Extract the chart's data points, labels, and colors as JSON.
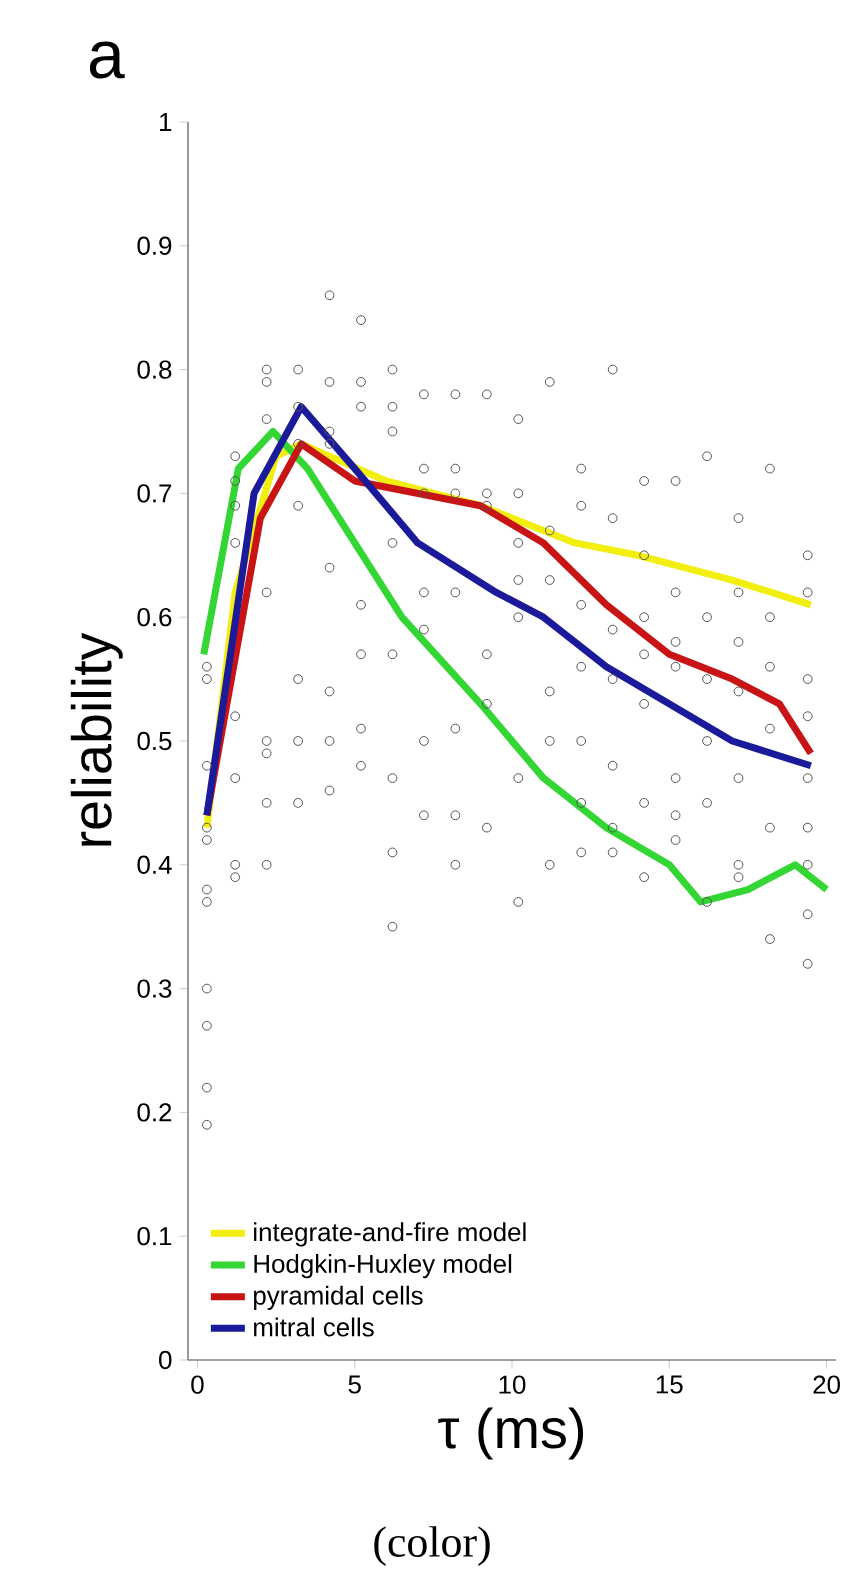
{
  "chart_data": {
    "type": "line",
    "title": "a",
    "xlabel": "τ (ms)",
    "ylabel": "reliability",
    "annotations": [
      "(color)"
    ],
    "xlim": [
      -0.3,
      20.3
    ],
    "ylim": [
      0,
      1
    ],
    "xticks": [
      0,
      5,
      10,
      15,
      20
    ],
    "yticks": [
      0,
      0.1,
      0.2,
      0.3,
      0.4,
      0.5,
      0.6,
      0.7,
      0.8,
      0.9,
      1
    ],
    "legend": "bottom left",
    "series": [
      {
        "type": "scatter",
        "marker": "circle",
        "color": "#555555",
        "x": [
          0.3,
          0.3,
          0.3,
          0.3,
          0.3,
          0.3,
          0.3,
          0.3,
          0.3,
          0.3,
          0.3,
          1.2,
          1.2,
          1.2,
          1.2,
          1.2,
          1.2,
          1.2,
          1.2,
          2.2,
          2.2,
          2.2,
          2.2,
          2.2,
          2.2,
          2.2,
          2.2,
          3.2,
          3.2,
          3.2,
          3.2,
          3.2,
          3.2,
          3.2,
          4.2,
          4.2,
          4.2,
          4.2,
          4.2,
          4.2,
          4.2,
          4.2,
          5.2,
          5.2,
          5.2,
          5.2,
          5.2,
          5.2,
          5.2,
          6.2,
          6.2,
          6.2,
          6.2,
          6.2,
          6.2,
          6.2,
          6.2,
          7.2,
          7.2,
          7.2,
          7.2,
          7.2,
          7.2,
          7.2,
          8.2,
          8.2,
          8.2,
          8.2,
          8.2,
          8.2,
          8.2,
          9.2,
          9.2,
          9.2,
          9.2,
          9.2,
          9.2,
          10.2,
          10.2,
          10.2,
          10.2,
          10.2,
          10.2,
          10.2,
          11.2,
          11.2,
          11.2,
          11.2,
          11.2,
          11.2,
          12.2,
          12.2,
          12.2,
          12.2,
          12.2,
          12.2,
          12.2,
          13.2,
          13.2,
          13.2,
          13.2,
          13.2,
          13.2,
          13.2,
          14.2,
          14.2,
          14.2,
          14.2,
          14.2,
          14.2,
          14.2,
          15.2,
          15.2,
          15.2,
          15.2,
          15.2,
          15.2,
          15.2,
          16.2,
          16.2,
          16.2,
          16.2,
          16.2,
          16.2,
          17.2,
          17.2,
          17.2,
          17.2,
          17.2,
          17.2,
          17.2,
          18.2,
          18.2,
          18.2,
          18.2,
          18.2,
          18.2,
          19.4,
          19.4,
          19.4,
          19.4,
          19.4,
          19.4,
          19.4,
          19.4,
          19.4
        ],
        "values": [
          0.43,
          0.42,
          0.38,
          0.37,
          0.3,
          0.27,
          0.22,
          0.19,
          0.56,
          0.55,
          0.48,
          0.71,
          0.69,
          0.66,
          0.52,
          0.47,
          0.4,
          0.39,
          0.73,
          0.8,
          0.79,
          0.76,
          0.62,
          0.5,
          0.49,
          0.45,
          0.4,
          0.8,
          0.77,
          0.74,
          0.69,
          0.55,
          0.5,
          0.45,
          0.86,
          0.79,
          0.75,
          0.74,
          0.64,
          0.54,
          0.5,
          0.46,
          0.84,
          0.79,
          0.77,
          0.61,
          0.57,
          0.51,
          0.48,
          0.8,
          0.77,
          0.75,
          0.66,
          0.57,
          0.47,
          0.41,
          0.35,
          0.78,
          0.72,
          0.7,
          0.62,
          0.59,
          0.5,
          0.44,
          0.78,
          0.72,
          0.7,
          0.62,
          0.51,
          0.44,
          0.4,
          0.78,
          0.7,
          0.69,
          0.57,
          0.53,
          0.43,
          0.76,
          0.7,
          0.66,
          0.63,
          0.6,
          0.47,
          0.37,
          0.79,
          0.67,
          0.63,
          0.54,
          0.5,
          0.4,
          0.72,
          0.69,
          0.61,
          0.56,
          0.5,
          0.45,
          0.41,
          0.8,
          0.68,
          0.59,
          0.55,
          0.48,
          0.43,
          0.41,
          0.71,
          0.65,
          0.6,
          0.57,
          0.53,
          0.45,
          0.39,
          0.71,
          0.62,
          0.58,
          0.56,
          0.47,
          0.44,
          0.42,
          0.73,
          0.6,
          0.55,
          0.5,
          0.45,
          0.37,
          0.68,
          0.62,
          0.58,
          0.54,
          0.47,
          0.4,
          0.39,
          0.72,
          0.6,
          0.56,
          0.51,
          0.43,
          0.34,
          0.65,
          0.62,
          0.55,
          0.52,
          0.47,
          0.43,
          0.4,
          0.36,
          0.32
        ]
      },
      {
        "name": "integrate-and-fire model",
        "color": "#f2ee10",
        "x": [
          0.3,
          1.2,
          2.5,
          3.3,
          6,
          9,
          12,
          14,
          17,
          19.5
        ],
        "values": [
          0.43,
          0.62,
          0.73,
          0.74,
          0.71,
          0.69,
          0.66,
          0.65,
          0.63,
          0.61
        ]
      },
      {
        "name": "Hodgkin-Huxley model",
        "color": "#33d633",
        "x": [
          0.2,
          1.3,
          2.4,
          3.5,
          5,
          6.5,
          9,
          11,
          13,
          15,
          16,
          17.5,
          19,
          20
        ],
        "values": [
          0.57,
          0.72,
          0.75,
          0.72,
          0.66,
          0.6,
          0.53,
          0.47,
          0.43,
          0.4,
          0.37,
          0.38,
          0.4,
          0.38
        ]
      },
      {
        "name": "pyramidal cells",
        "color": "#c81414",
        "x": [
          0.3,
          2,
          3.3,
          5,
          7,
          9,
          11,
          13,
          15,
          17,
          18.5,
          19.5
        ],
        "values": [
          0.44,
          0.68,
          0.74,
          0.71,
          0.7,
          0.69,
          0.66,
          0.61,
          0.57,
          0.55,
          0.53,
          0.49
        ]
      },
      {
        "name": "mitral cells",
        "color": "#1a1a9a",
        "x": [
          0.3,
          1.8,
          3.3,
          5,
          7,
          9.5,
          11,
          13,
          15,
          17,
          19.5
        ],
        "values": [
          0.44,
          0.7,
          0.77,
          0.72,
          0.66,
          0.62,
          0.6,
          0.56,
          0.53,
          0.5,
          0.48
        ]
      }
    ]
  }
}
